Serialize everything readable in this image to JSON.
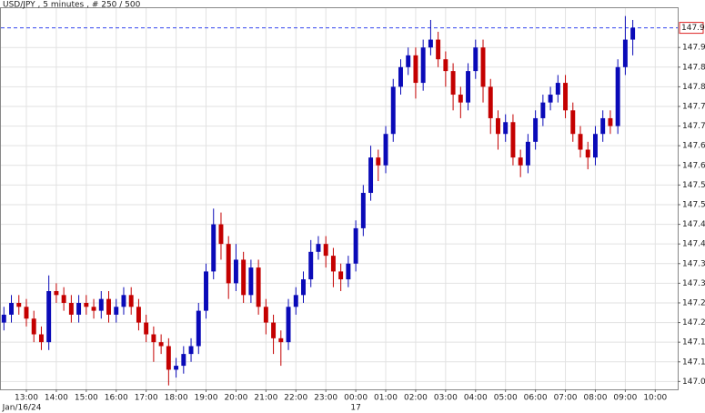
{
  "chart_data": {
    "type": "ohlc",
    "title": "USD/JPY , 5 minutes , # 250 / 500",
    "up_color": "#0a0ab8",
    "down_color": "#c40000",
    "grid": true,
    "xlim": [
      12.15,
      34.75
    ],
    "ylim": [
      147.03,
      148.0
    ],
    "xticks": [
      {
        "value": 13,
        "label": "13:00"
      },
      {
        "value": 14,
        "label": "14:00"
      },
      {
        "value": 15,
        "label": "15:00"
      },
      {
        "value": 16,
        "label": "16:00"
      },
      {
        "value": 17,
        "label": "17:00"
      },
      {
        "value": 18,
        "label": "18:00"
      },
      {
        "value": 19,
        "label": "19:00"
      },
      {
        "value": 20,
        "label": "20:00"
      },
      {
        "value": 21,
        "label": "21:00"
      },
      {
        "value": 22,
        "label": "22:00"
      },
      {
        "value": 23,
        "label": "23:00"
      },
      {
        "value": 24,
        "label": "00:00"
      },
      {
        "value": 25,
        "label": "01:00"
      },
      {
        "value": 26,
        "label": "02:00"
      },
      {
        "value": 27,
        "label": "03:00"
      },
      {
        "value": 28,
        "label": "04:00"
      },
      {
        "value": 29,
        "label": "05:00"
      },
      {
        "value": 30,
        "label": "06:00"
      },
      {
        "value": 31,
        "label": "07:00"
      },
      {
        "value": 32,
        "label": "08:00"
      },
      {
        "value": 33,
        "label": "09:00"
      },
      {
        "value": 34,
        "label": "10:00"
      }
    ],
    "date_ticks": [
      {
        "value": 12.2,
        "label": "Jan/16/24"
      },
      {
        "value": 24,
        "label": "17"
      }
    ],
    "yticks": [
      147.05,
      {
        "value": 147.1,
        "label": "147.10"
      },
      147.15,
      {
        "value": 147.2,
        "label": "147.20"
      },
      147.25,
      {
        "value": 147.3,
        "label": "147.30"
      },
      147.35,
      {
        "value": 147.4,
        "label": "147.40"
      },
      147.45,
      {
        "value": 147.5,
        "label": "147.50"
      },
      147.55,
      {
        "value": 147.6,
        "label": "147.60"
      },
      147.65,
      {
        "value": 147.7,
        "label": "147.70"
      },
      147.75,
      {
        "value": 147.8,
        "label": "147.80"
      },
      147.85,
      {
        "value": 147.9,
        "label": "147.90"
      }
    ],
    "last_price": {
      "value": 147.95,
      "label": "147.95"
    },
    "x": [
      12.25,
      12.5,
      12.75,
      13,
      13.25,
      13.5,
      13.75,
      14,
      14.25,
      14.5,
      14.75,
      15,
      15.25,
      15.5,
      15.75,
      16,
      16.25,
      16.5,
      16.75,
      17,
      17.25,
      17.5,
      17.75,
      18,
      18.25,
      18.5,
      18.75,
      19,
      19.25,
      19.5,
      19.75,
      20,
      20.25,
      20.5,
      20.75,
      21,
      21.25,
      21.5,
      21.75,
      22,
      22.25,
      22.5,
      22.75,
      23,
      23.25,
      23.5,
      23.75,
      24,
      24.25,
      24.5,
      24.75,
      25,
      25.25,
      25.5,
      25.75,
      26,
      26.25,
      26.5,
      26.75,
      27,
      27.25,
      27.5,
      27.75,
      28,
      28.25,
      28.5,
      28.75,
      29,
      29.25,
      29.5,
      29.75,
      30,
      30.25,
      30.5,
      30.75,
      31,
      31.25,
      31.5,
      31.75,
      32,
      32.25,
      32.5,
      32.75,
      33,
      33.25
    ],
    "open": [
      147.2,
      147.22,
      147.25,
      147.24,
      147.21,
      147.17,
      147.15,
      147.28,
      147.27,
      147.25,
      147.22,
      147.25,
      147.24,
      147.23,
      147.26,
      147.22,
      147.24,
      147.27,
      147.24,
      147.2,
      147.17,
      147.15,
      147.14,
      147.08,
      147.09,
      147.12,
      147.14,
      147.23,
      147.33,
      147.45,
      147.4,
      147.3,
      147.36,
      147.27,
      147.34,
      147.24,
      147.2,
      147.16,
      147.15,
      147.24,
      147.27,
      147.31,
      147.38,
      147.4,
      147.37,
      147.33,
      147.31,
      147.35,
      147.44,
      147.53,
      147.62,
      147.6,
      147.68,
      147.8,
      147.85,
      147.88,
      147.81,
      147.9,
      147.92,
      147.87,
      147.84,
      147.78,
      147.76,
      147.84,
      147.9,
      147.8,
      147.72,
      147.68,
      147.71,
      147.62,
      147.6,
      147.66,
      147.72,
      147.76,
      147.78,
      147.81,
      147.74,
      147.68,
      147.64,
      147.62,
      147.68,
      147.72,
      147.7,
      147.85,
      147.92
    ],
    "high": [
      147.24,
      147.27,
      147.27,
      147.26,
      147.23,
      147.19,
      147.32,
      147.3,
      147.29,
      147.27,
      147.27,
      147.27,
      147.26,
      147.28,
      147.28,
      147.26,
      147.29,
      147.29,
      147.26,
      147.22,
      147.19,
      147.17,
      147.16,
      147.11,
      147.14,
      147.16,
      147.25,
      147.35,
      147.49,
      147.48,
      147.42,
      147.4,
      147.38,
      147.36,
      147.36,
      147.26,
      147.22,
      147.18,
      147.26,
      147.29,
      147.33,
      147.41,
      147.42,
      147.42,
      147.39,
      147.35,
      147.37,
      147.46,
      147.55,
      147.65,
      147.64,
      147.7,
      147.82,
      147.87,
      147.9,
      147.9,
      147.92,
      147.97,
      147.94,
      147.89,
      147.86,
      147.8,
      147.86,
      147.92,
      147.92,
      147.82,
      147.74,
      147.73,
      147.73,
      147.64,
      147.68,
      147.74,
      147.78,
      147.8,
      147.83,
      147.83,
      147.76,
      147.7,
      147.66,
      147.7,
      147.74,
      147.74,
      147.87,
      147.98,
      147.97
    ],
    "low": [
      147.18,
      147.2,
      147.22,
      147.19,
      147.15,
      147.13,
      147.13,
      147.25,
      147.23,
      147.2,
      147.2,
      147.22,
      147.21,
      147.21,
      147.2,
      147.2,
      147.22,
      147.22,
      147.18,
      147.15,
      147.1,
      147.12,
      147.04,
      147.06,
      147.07,
      147.1,
      147.12,
      147.21,
      147.31,
      147.36,
      147.26,
      147.28,
      147.25,
      147.25,
      147.22,
      147.17,
      147.12,
      147.09,
      147.13,
      147.22,
      147.25,
      147.29,
      147.36,
      147.34,
      147.29,
      147.28,
      147.29,
      147.33,
      147.42,
      147.51,
      147.56,
      147.58,
      147.66,
      147.78,
      147.83,
      147.77,
      147.79,
      147.88,
      147.85,
      147.8,
      147.74,
      147.72,
      147.74,
      147.82,
      147.76,
      147.68,
      147.64,
      147.66,
      147.6,
      147.57,
      147.58,
      147.64,
      147.7,
      147.74,
      147.76,
      147.72,
      147.66,
      147.62,
      147.59,
      147.6,
      147.66,
      147.68,
      147.68,
      147.83,
      147.88
    ],
    "close": [
      147.22,
      147.25,
      147.24,
      147.21,
      147.17,
      147.15,
      147.28,
      147.27,
      147.25,
      147.22,
      147.25,
      147.24,
      147.23,
      147.26,
      147.22,
      147.24,
      147.27,
      147.24,
      147.2,
      147.17,
      147.15,
      147.14,
      147.08,
      147.09,
      147.12,
      147.14,
      147.23,
      147.33,
      147.45,
      147.4,
      147.3,
      147.36,
      147.27,
      147.34,
      147.24,
      147.2,
      147.16,
      147.15,
      147.24,
      147.27,
      147.31,
      147.38,
      147.4,
      147.37,
      147.33,
      147.31,
      147.35,
      147.44,
      147.53,
      147.62,
      147.6,
      147.68,
      147.8,
      147.85,
      147.88,
      147.81,
      147.9,
      147.92,
      147.87,
      147.84,
      147.78,
      147.76,
      147.84,
      147.9,
      147.8,
      147.72,
      147.68,
      147.71,
      147.62,
      147.6,
      147.66,
      147.72,
      147.76,
      147.78,
      147.81,
      147.74,
      147.68,
      147.64,
      147.62,
      147.68,
      147.72,
      147.7,
      147.85,
      147.92,
      147.95
    ]
  }
}
